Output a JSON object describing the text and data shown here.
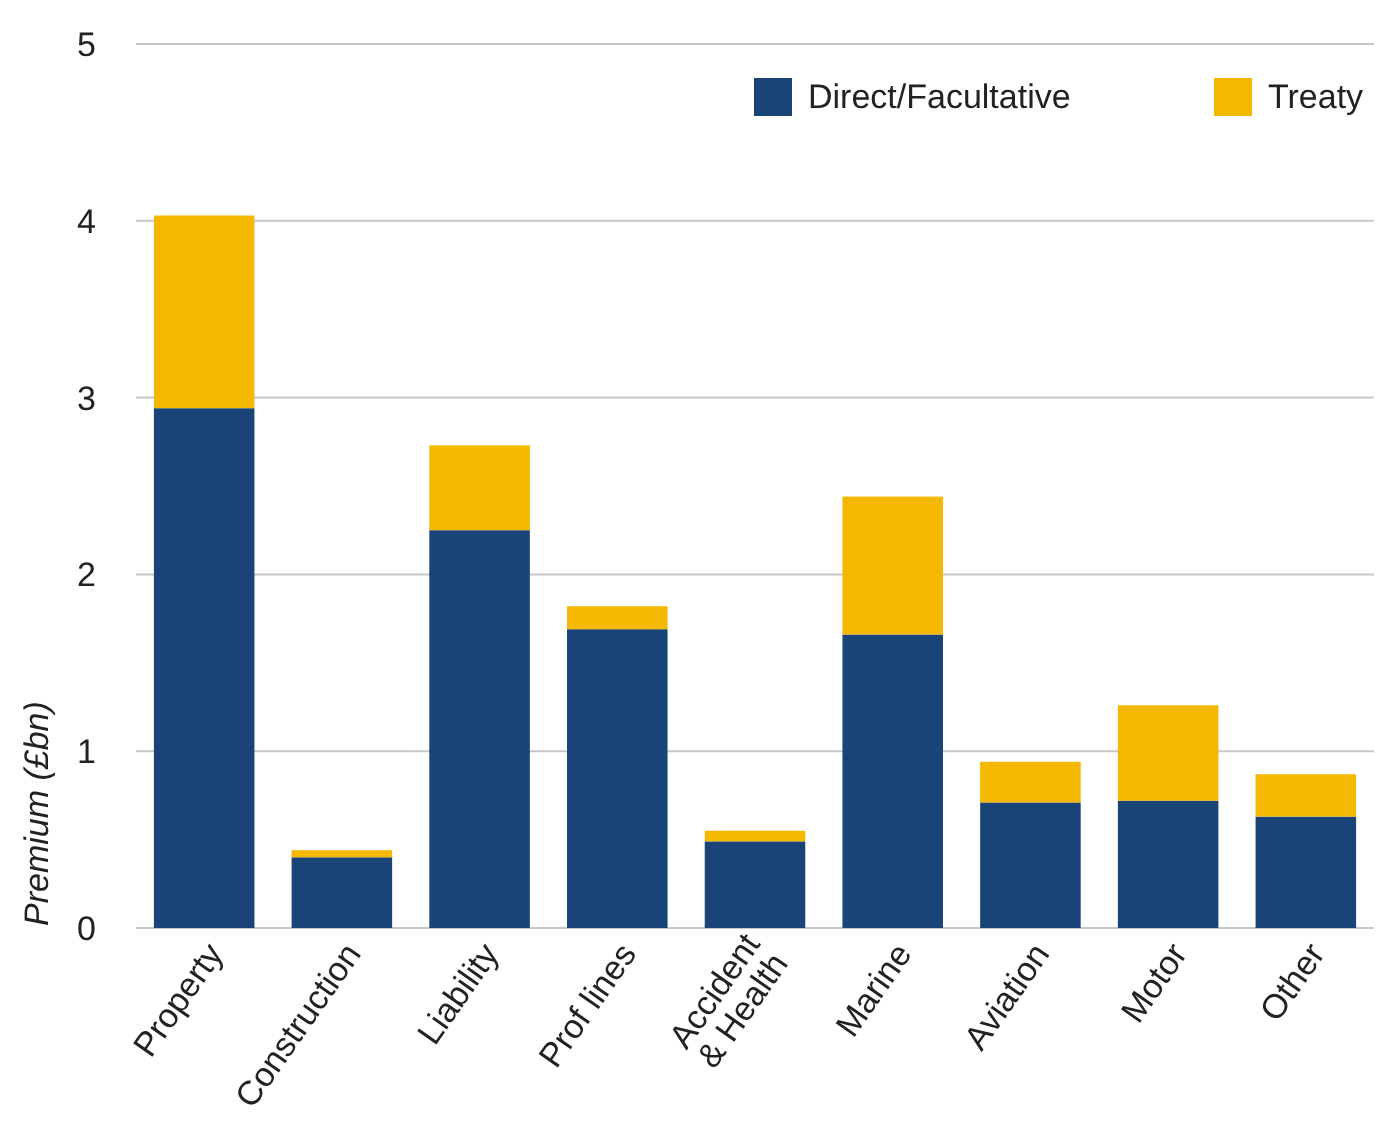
{
  "chart_data": {
    "type": "bar",
    "stacked": true,
    "ylabel": "Premium (£bn)",
    "categories": [
      "Property",
      "Construction",
      "Liability",
      "Prof lines",
      "Accident\n& Health",
      "Marine",
      "Aviation",
      "Motor",
      "Other"
    ],
    "series": [
      {
        "name": "Direct/Facultative",
        "color": "#1a4478",
        "values": [
          2.94,
          0.4,
          2.25,
          1.69,
          0.49,
          1.66,
          0.71,
          0.72,
          0.63
        ]
      },
      {
        "name": "Treaty",
        "color": "#f5b800",
        "values": [
          1.09,
          0.04,
          0.48,
          0.13,
          0.06,
          0.78,
          0.23,
          0.54,
          0.24
        ]
      }
    ],
    "ylim": [
      0,
      5
    ],
    "yticks": [
      0,
      1,
      2,
      3,
      4,
      5
    ],
    "grid": "y",
    "legend": "top right"
  }
}
